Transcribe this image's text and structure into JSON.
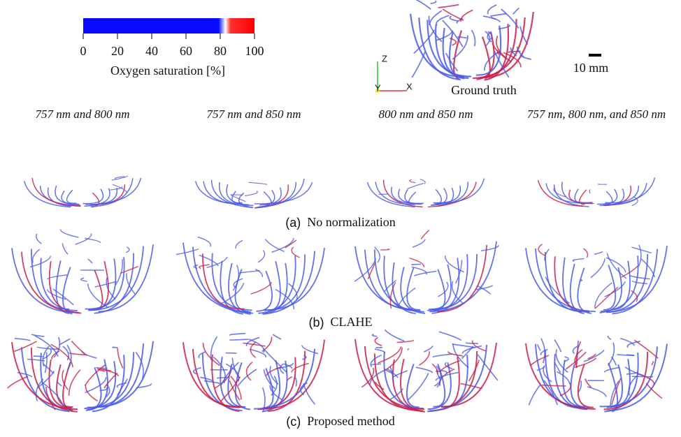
{
  "colorbar": {
    "label": "Oxygen saturation [%]",
    "lim": [
      0,
      100
    ],
    "ticks": [
      0,
      20,
      40,
      60,
      80,
      100
    ]
  },
  "ground_truth": {
    "label": "Ground truth",
    "axes": [
      "Z",
      "Y",
      "X"
    ],
    "scale_bar": "10 mm"
  },
  "columns": [
    "757 nm and 800 nm",
    "757 nm and 850 nm",
    "800 nm and 850 nm",
    "757 nm, 800 nm, and 850 nm"
  ],
  "rows": [
    {
      "tag": "(a)",
      "caption": "No normalization"
    },
    {
      "tag": "(b)",
      "caption": "CLAHE"
    },
    {
      "tag": "(c)",
      "caption": "Proposed method"
    }
  ]
}
